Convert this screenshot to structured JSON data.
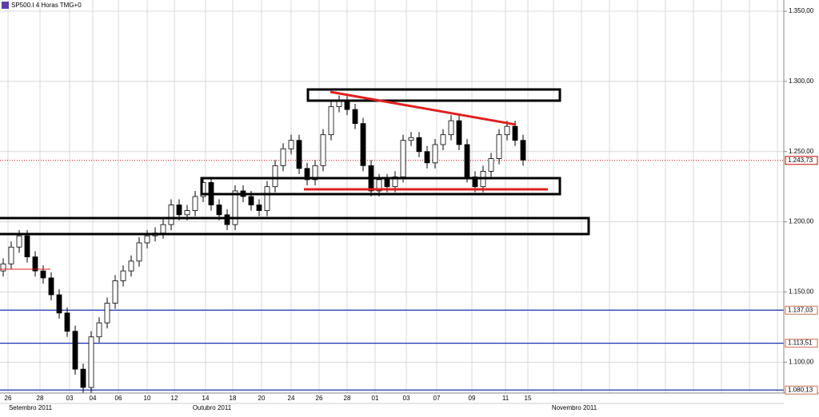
{
  "chart_data": {
    "type": "candlestick",
    "title": "SP500.I 4 Horas TMG+0",
    "open": [
      1165,
      1170,
      1182,
      1190,
      1175,
      1165,
      1160,
      1148,
      1135,
      1122,
      1095,
      1082,
      1118,
      1128,
      1142,
      1158,
      1165,
      1172,
      1185,
      1190,
      1192,
      1198,
      1212,
      1205,
      1208,
      1218,
      1228,
      1212,
      1205,
      1198,
      1222,
      1218,
      1212,
      1208,
      1225,
      1240,
      1252,
      1258,
      1238,
      1230,
      1240,
      1262,
      1282,
      1286,
      1280,
      1270,
      1240,
      1222,
      1230,
      1225,
      1232,
      1258,
      1260,
      1250,
      1242,
      1255,
      1262,
      1272,
      1255,
      1232,
      1225,
      1236,
      1245,
      1262,
      1268,
      1258
    ],
    "high": [
      1174,
      1186,
      1194,
      1194,
      1179,
      1169,
      1164,
      1152,
      1139,
      1126,
      1099,
      1122,
      1132,
      1146,
      1162,
      1169,
      1176,
      1189,
      1194,
      1196,
      1202,
      1216,
      1216,
      1212,
      1222,
      1232,
      1232,
      1216,
      1209,
      1226,
      1226,
      1222,
      1216,
      1229,
      1244,
      1256,
      1262,
      1262,
      1242,
      1244,
      1266,
      1286,
      1290,
      1290,
      1284,
      1274,
      1244,
      1234,
      1234,
      1236,
      1262,
      1264,
      1264,
      1254,
      1259,
      1266,
      1276,
      1276,
      1259,
      1236,
      1240,
      1249,
      1266,
      1272,
      1272,
      1262
    ],
    "low": [
      1161,
      1166,
      1178,
      1171,
      1161,
      1156,
      1144,
      1131,
      1118,
      1091,
      1078,
      1078,
      1114,
      1124,
      1138,
      1154,
      1161,
      1168,
      1181,
      1186,
      1188,
      1194,
      1201,
      1201,
      1204,
      1214,
      1208,
      1201,
      1194,
      1194,
      1214,
      1208,
      1204,
      1204,
      1221,
      1236,
      1248,
      1234,
      1226,
      1226,
      1236,
      1258,
      1278,
      1276,
      1266,
      1236,
      1218,
      1218,
      1221,
      1221,
      1228,
      1254,
      1246,
      1238,
      1238,
      1251,
      1258,
      1251,
      1228,
      1221,
      1221,
      1232,
      1241,
      1258,
      1254,
      1240
    ],
    "close": [
      1170,
      1182,
      1190,
      1175,
      1165,
      1160,
      1148,
      1135,
      1122,
      1095,
      1082,
      1118,
      1128,
      1142,
      1158,
      1165,
      1172,
      1185,
      1190,
      1192,
      1198,
      1212,
      1205,
      1208,
      1218,
      1228,
      1212,
      1205,
      1198,
      1222,
      1218,
      1212,
      1208,
      1225,
      1240,
      1252,
      1258,
      1238,
      1230,
      1240,
      1262,
      1282,
      1286,
      1280,
      1270,
      1240,
      1222,
      1230,
      1225,
      1232,
      1258,
      1260,
      1250,
      1242,
      1255,
      1262,
      1272,
      1255,
      1232,
      1225,
      1236,
      1245,
      1262,
      1268,
      1258,
      1244
    ],
    "ylim": [
      1078,
      1358
    ],
    "yticks": [
      {
        "value": 1100,
        "label": "1.100,00"
      },
      {
        "value": 1150,
        "label": "1.150,00"
      },
      {
        "value": 1200,
        "label": "1.200,00"
      },
      {
        "value": 1250,
        "label": "1.250,00"
      },
      {
        "value": 1300,
        "label": "1.300,00"
      },
      {
        "value": 1350,
        "label": "1.350,00"
      }
    ],
    "xlim": [
      -0.4,
      97.6
    ],
    "xticks": [
      {
        "value": 0.6,
        "label": "26"
      },
      {
        "value": 4.6,
        "label": "28"
      },
      {
        "value": 8.3,
        "label": "03"
      },
      {
        "value": 11.2,
        "label": "04"
      },
      {
        "value": 14.4,
        "label": "06"
      },
      {
        "value": 18,
        "label": "10"
      },
      {
        "value": 21.4,
        "label": "12"
      },
      {
        "value": 25.3,
        "label": "14"
      },
      {
        "value": 28.7,
        "label": "18"
      },
      {
        "value": 32.3,
        "label": "20"
      },
      {
        "value": 36,
        "label": "24"
      },
      {
        "value": 39.5,
        "label": "26"
      },
      {
        "value": 43,
        "label": "28"
      },
      {
        "value": 46.5,
        "label": "01"
      },
      {
        "value": 50.4,
        "label": "03"
      },
      {
        "value": 54.2,
        "label": "07"
      },
      {
        "value": 58.6,
        "label": "09"
      },
      {
        "value": 62.8,
        "label": "11"
      },
      {
        "value": 65.6,
        "label": "15"
      }
    ],
    "months": [
      {
        "value": 3.4,
        "label": "Setembro 2011"
      },
      {
        "value": 26.1,
        "label": "Outubro 2011"
      },
      {
        "value": 71.4,
        "label": "Novembro 2011"
      }
    ],
    "levels": [
      {
        "value": 1137.03,
        "label": "1.137,03"
      },
      {
        "value": 1113.51,
        "label": "1.113,51"
      },
      {
        "value": 1080.13,
        "label": "1.080,13"
      }
    ],
    "level_color": "#1a2fb0",
    "last_price": {
      "value": 1243.73,
      "label": "1.243,73"
    },
    "last_color": "#cc0000",
    "up_color": "#ffffff",
    "down_color": "#000000",
    "grid": true
  }
}
